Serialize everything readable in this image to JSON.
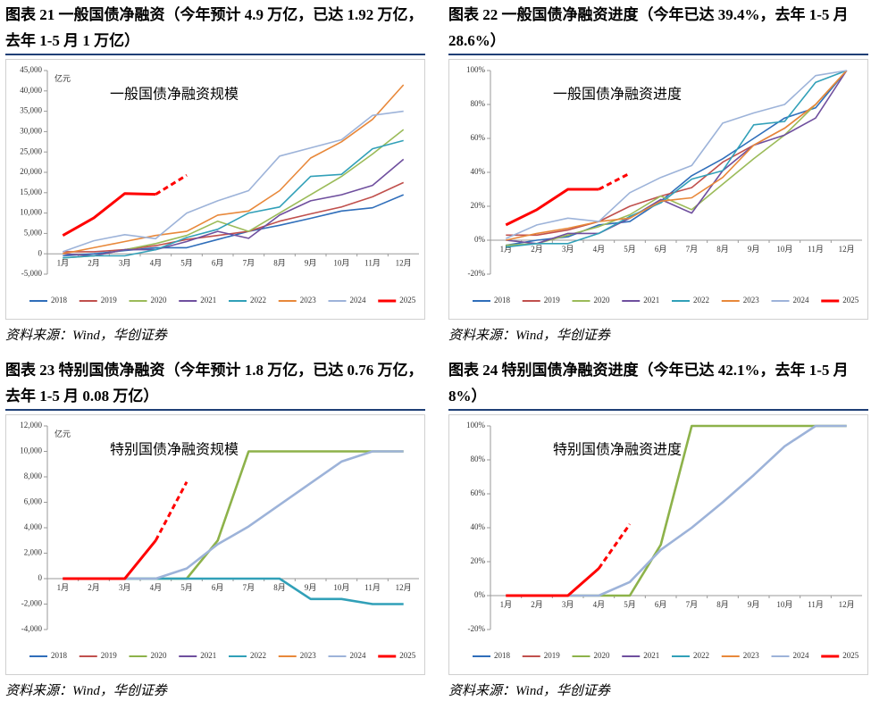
{
  "chart_data": [
    {
      "type": "line",
      "title": "图表 21    一般国债净融资（今年预计 4.9 万亿，已达 1.92 万亿，去年 1-5 月 1 万亿）",
      "annotation": "一般国债净融资规模",
      "unit": "亿元",
      "source": "资料来源：Wind，华创证券",
      "categories": [
        "1月",
        "2月",
        "3月",
        "4月",
        "5月",
        "6月",
        "7月",
        "8月",
        "9月",
        "10月",
        "11月",
        "12月"
      ],
      "ylim": [
        -5000,
        45000
      ],
      "yticks": [
        {
          "value": -5000,
          "label": "-5,000"
        },
        0,
        {
          "value": 5000,
          "label": "5,000"
        },
        {
          "value": 10000,
          "label": "10,000"
        },
        {
          "value": 15000,
          "label": "15,000"
        },
        {
          "value": 20000,
          "label": "20,000"
        },
        {
          "value": 25000,
          "label": "25,000"
        },
        {
          "value": 30000,
          "label": "30,000"
        },
        {
          "value": 35000,
          "label": "35,000"
        },
        {
          "value": 40000,
          "label": "40,000"
        },
        {
          "value": 45000,
          "label": "45,000"
        }
      ],
      "series": [
        {
          "name": "2018",
          "color": "#2f6eba",
          "values": [
            -500,
            0,
            800,
            1500,
            1500,
            3500,
            5500,
            7000,
            8700,
            10500,
            11300,
            14500
          ]
        },
        {
          "name": "2019",
          "color": "#c0504d",
          "values": [
            500,
            500,
            1000,
            2000,
            3500,
            4500,
            5500,
            8000,
            9800,
            11500,
            14000,
            17500
          ]
        },
        {
          "name": "2020",
          "color": "#9bbb59",
          "values": [
            -1000,
            -500,
            1000,
            2500,
            4500,
            8000,
            5500,
            10000,
            14500,
            19000,
            24500,
            30500
          ]
        },
        {
          "name": "2021",
          "color": "#6f4f9e",
          "values": [
            0,
            -500,
            1000,
            1000,
            3000,
            5500,
            3800,
            9500,
            13000,
            14500,
            16800,
            23200
          ]
        },
        {
          "name": "2022",
          "color": "#31a0b8",
          "values": [
            -1000,
            -500,
            -500,
            1000,
            4000,
            6000,
            10000,
            11500,
            19000,
            19500,
            25800,
            27800
          ]
        },
        {
          "name": "2023",
          "color": "#e8883a",
          "values": [
            0,
            1500,
            3000,
            4500,
            5500,
            9500,
            10500,
            15500,
            23500,
            27500,
            33000,
            41500
          ]
        },
        {
          "name": "2024",
          "color": "#9db3d9",
          "values": [
            500,
            3200,
            4700,
            3700,
            10000,
            13000,
            15500,
            24000,
            26000,
            28000,
            34000,
            35000
          ]
        },
        {
          "name": "2025",
          "color": "#ff0000",
          "dashed_from": 3,
          "values": [
            4500,
            8800,
            14800,
            14600,
            19300,
            null,
            null,
            null,
            null,
            null,
            null,
            null
          ]
        }
      ]
    },
    {
      "type": "line",
      "title": "图表 22    一般国债净融资进度（今年已达 39.4%，去年 1-5 月 28.6%）",
      "annotation": "一般国债净融资进度",
      "source": "资料来源：Wind，华创证券",
      "categories": [
        "1月",
        "2月",
        "3月",
        "4月",
        "5月",
        "6月",
        "7月",
        "8月",
        "9月",
        "10月",
        "11月",
        "12月"
      ],
      "ylim": [
        -20,
        100
      ],
      "yticks": [
        {
          "value": -20,
          "label": "-20%"
        },
        {
          "value": 0,
          "label": "0%"
        },
        {
          "value": 20,
          "label": "20%"
        },
        {
          "value": 40,
          "label": "40%"
        },
        {
          "value": 60,
          "label": "60%"
        },
        {
          "value": 80,
          "label": "80%"
        },
        {
          "value": 100,
          "label": "100%"
        }
      ],
      "series": [
        {
          "name": "2018",
          "color": "#2f6eba",
          "values": [
            -3,
            0,
            2,
            9,
            11,
            23,
            38,
            48,
            60,
            72,
            78,
            100
          ]
        },
        {
          "name": "2019",
          "color": "#c0504d",
          "values": [
            3,
            3,
            6,
            11,
            20,
            26,
            31,
            46,
            56,
            66,
            80,
            100
          ]
        },
        {
          "name": "2020",
          "color": "#9bbb59",
          "values": [
            -3,
            -2,
            3,
            8,
            15,
            26,
            18,
            33,
            48,
            62,
            80,
            100
          ]
        },
        {
          "name": "2021",
          "color": "#6f4f9e",
          "values": [
            0,
            -2,
            4,
            4,
            13,
            24,
            16,
            41,
            56,
            62,
            72,
            100
          ]
        },
        {
          "name": "2022",
          "color": "#31a0b8",
          "values": [
            -4,
            -2,
            -2,
            4,
            14,
            22,
            36,
            41,
            68,
            70,
            93,
            100
          ]
        },
        {
          "name": "2023",
          "color": "#e8883a",
          "values": [
            0,
            4,
            7,
            11,
            13,
            23,
            25,
            37,
            56,
            66,
            80,
            100
          ]
        },
        {
          "name": "2024",
          "color": "#9db3d9",
          "values": [
            1,
            9,
            13,
            11,
            28,
            37,
            44,
            69,
            75,
            80,
            97,
            100
          ]
        },
        {
          "name": "2025",
          "color": "#ff0000",
          "dashed_from": 3,
          "values": [
            9,
            18,
            30,
            30,
            39.4,
            null,
            null,
            null,
            null,
            null,
            null,
            null
          ]
        }
      ]
    },
    {
      "type": "line",
      "title": "图表 23    特别国债净融资（今年预计 1.8 万亿，已达 0.76 万亿，去年 1-5 月 0.08 万亿）",
      "annotation": "特别国债净融资规模",
      "unit": "亿元",
      "source": "资料来源：Wind，华创证券",
      "categories": [
        "1月",
        "2月",
        "3月",
        "4月",
        "5月",
        "6月",
        "7月",
        "8月",
        "9月",
        "10月",
        "11月",
        "12月"
      ],
      "ylim": [
        -4000,
        12000
      ],
      "yticks": [
        {
          "value": -4000,
          "label": "-4,000"
        },
        {
          "value": -2000,
          "label": "-2,000"
        },
        0,
        {
          "value": 2000,
          "label": "2,000"
        },
        {
          "value": 4000,
          "label": "4,000"
        },
        {
          "value": 6000,
          "label": "6,000"
        },
        {
          "value": 8000,
          "label": "8,000"
        },
        {
          "value": 10000,
          "label": "10,000"
        },
        {
          "value": 12000,
          "label": "12,000"
        }
      ],
      "series": [
        {
          "name": "2018",
          "color": "#2f6eba",
          "values": [
            null,
            null,
            null,
            null,
            null,
            null,
            null,
            null,
            null,
            null,
            null,
            null
          ]
        },
        {
          "name": "2019",
          "color": "#c0504d",
          "values": [
            null,
            null,
            null,
            null,
            null,
            null,
            null,
            null,
            null,
            null,
            null,
            null
          ]
        },
        {
          "name": "2020",
          "color": "#8db24a",
          "values": [
            0,
            0,
            0,
            0,
            0,
            3000,
            10000,
            10000,
            10000,
            10000,
            10000,
            10000
          ]
        },
        {
          "name": "2021",
          "color": "#6f4f9e",
          "values": [
            null,
            null,
            null,
            null,
            null,
            null,
            null,
            null,
            null,
            null,
            null,
            null
          ]
        },
        {
          "name": "2022",
          "color": "#31a0b8",
          "values": [
            0,
            0,
            0,
            0,
            0,
            0,
            0,
            0,
            -1600,
            -1600,
            -2000,
            -2000
          ]
        },
        {
          "name": "2023",
          "color": "#e8883a",
          "values": [
            null,
            null,
            null,
            null,
            null,
            null,
            null,
            null,
            null,
            null,
            null,
            null
          ]
        },
        {
          "name": "2024",
          "color": "#9db3d9",
          "values": [
            0,
            0,
            0,
            0,
            800,
            2700,
            4100,
            5800,
            7500,
            9200,
            10000,
            10000
          ]
        },
        {
          "name": "2025",
          "color": "#ff0000",
          "dashed_from": 3,
          "values": [
            0,
            0,
            0,
            3000,
            7600,
            null,
            null,
            null,
            null,
            null,
            null,
            null
          ]
        }
      ]
    },
    {
      "type": "line",
      "title": "图表 24    特别国债净融资进度（今年已达 42.1%，去年 1-5 月 8%）",
      "annotation": "特别国债净融资进度",
      "source": "资料来源：Wind，华创证券",
      "categories": [
        "1月",
        "2月",
        "3月",
        "4月",
        "5月",
        "6月",
        "7月",
        "8月",
        "9月",
        "10月",
        "11月",
        "12月"
      ],
      "ylim": [
        -20,
        100
      ],
      "yticks": [
        {
          "value": -20,
          "label": "-20%"
        },
        {
          "value": 0,
          "label": "0%"
        },
        {
          "value": 20,
          "label": "20%"
        },
        {
          "value": 40,
          "label": "40%"
        },
        {
          "value": 60,
          "label": "60%"
        },
        {
          "value": 80,
          "label": "80%"
        },
        {
          "value": 100,
          "label": "100%"
        }
      ],
      "series": [
        {
          "name": "2018",
          "color": "#2f6eba",
          "values": [
            null,
            null,
            null,
            null,
            null,
            null,
            null,
            null,
            null,
            null,
            null,
            null
          ]
        },
        {
          "name": "2019",
          "color": "#c0504d",
          "values": [
            null,
            null,
            null,
            null,
            null,
            null,
            null,
            null,
            null,
            null,
            null,
            null
          ]
        },
        {
          "name": "2020",
          "color": "#8db24a",
          "values": [
            0,
            0,
            0,
            0,
            0,
            30,
            100,
            100,
            100,
            100,
            100,
            100
          ]
        },
        {
          "name": "2021",
          "color": "#6f4f9e",
          "values": [
            null,
            null,
            null,
            null,
            null,
            null,
            null,
            null,
            null,
            null,
            null,
            null
          ]
        },
        {
          "name": "2022",
          "color": "#31a0b8",
          "values": [
            null,
            null,
            null,
            null,
            null,
            null,
            null,
            null,
            null,
            null,
            null,
            null
          ]
        },
        {
          "name": "2023",
          "color": "#e8883a",
          "values": [
            null,
            null,
            null,
            null,
            null,
            null,
            null,
            null,
            null,
            null,
            null,
            null
          ]
        },
        {
          "name": "2024",
          "color": "#9db3d9",
          "values": [
            0,
            0,
            0,
            0,
            8,
            27,
            40,
            55,
            71,
            88,
            100,
            100
          ]
        },
        {
          "name": "2025",
          "color": "#ff0000",
          "dashed_from": 3,
          "values": [
            0,
            0,
            0,
            16,
            42.1,
            null,
            null,
            null,
            null,
            null,
            null,
            null
          ]
        }
      ]
    }
  ]
}
